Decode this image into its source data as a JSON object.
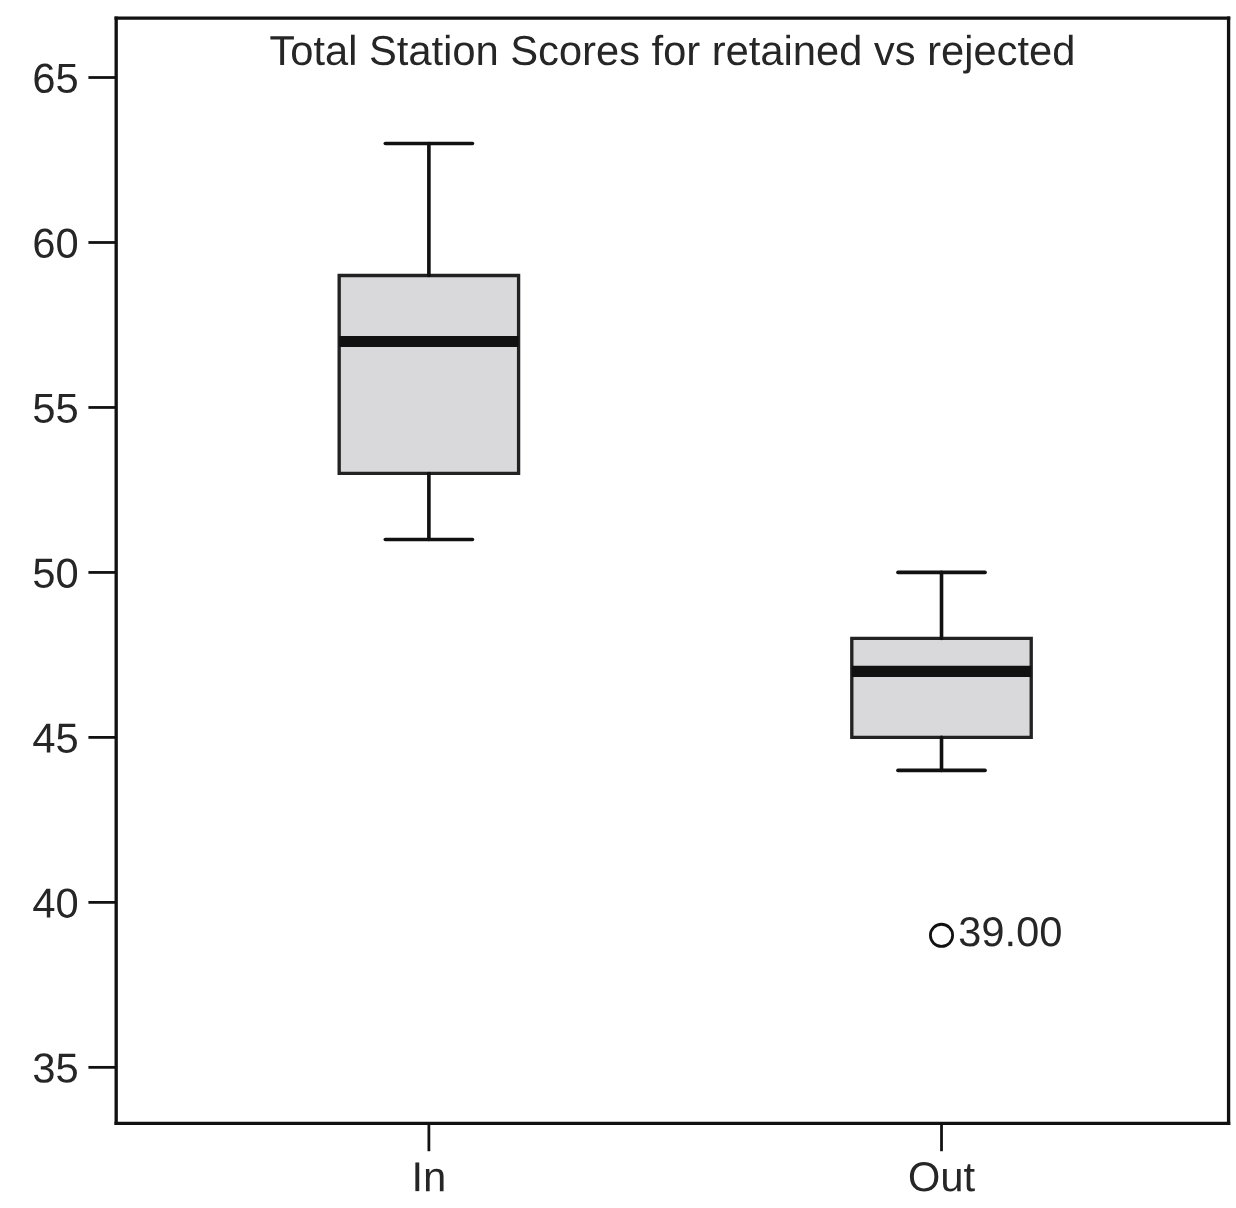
{
  "chart_data": {
    "type": "box",
    "title": "Total Station Scores for retained vs rejected",
    "categories": [
      "In",
      "Out"
    ],
    "series": [
      {
        "color": "#d9d9db",
        "boxes": [
          {
            "low": 51,
            "q1": 53,
            "median": 57,
            "q3": 59,
            "high": 63
          },
          {
            "low": 44,
            "q1": 45,
            "median": 47,
            "q3": 48,
            "high": 50,
            "outliers": [
              39
            ]
          }
        ]
      }
    ],
    "ylim": [
      33.3,
      66.8
    ],
    "yticks": [
      35,
      40,
      45,
      50,
      55,
      60,
      65
    ],
    "annotations": [
      "39.00"
    ],
    "grid": false
  }
}
